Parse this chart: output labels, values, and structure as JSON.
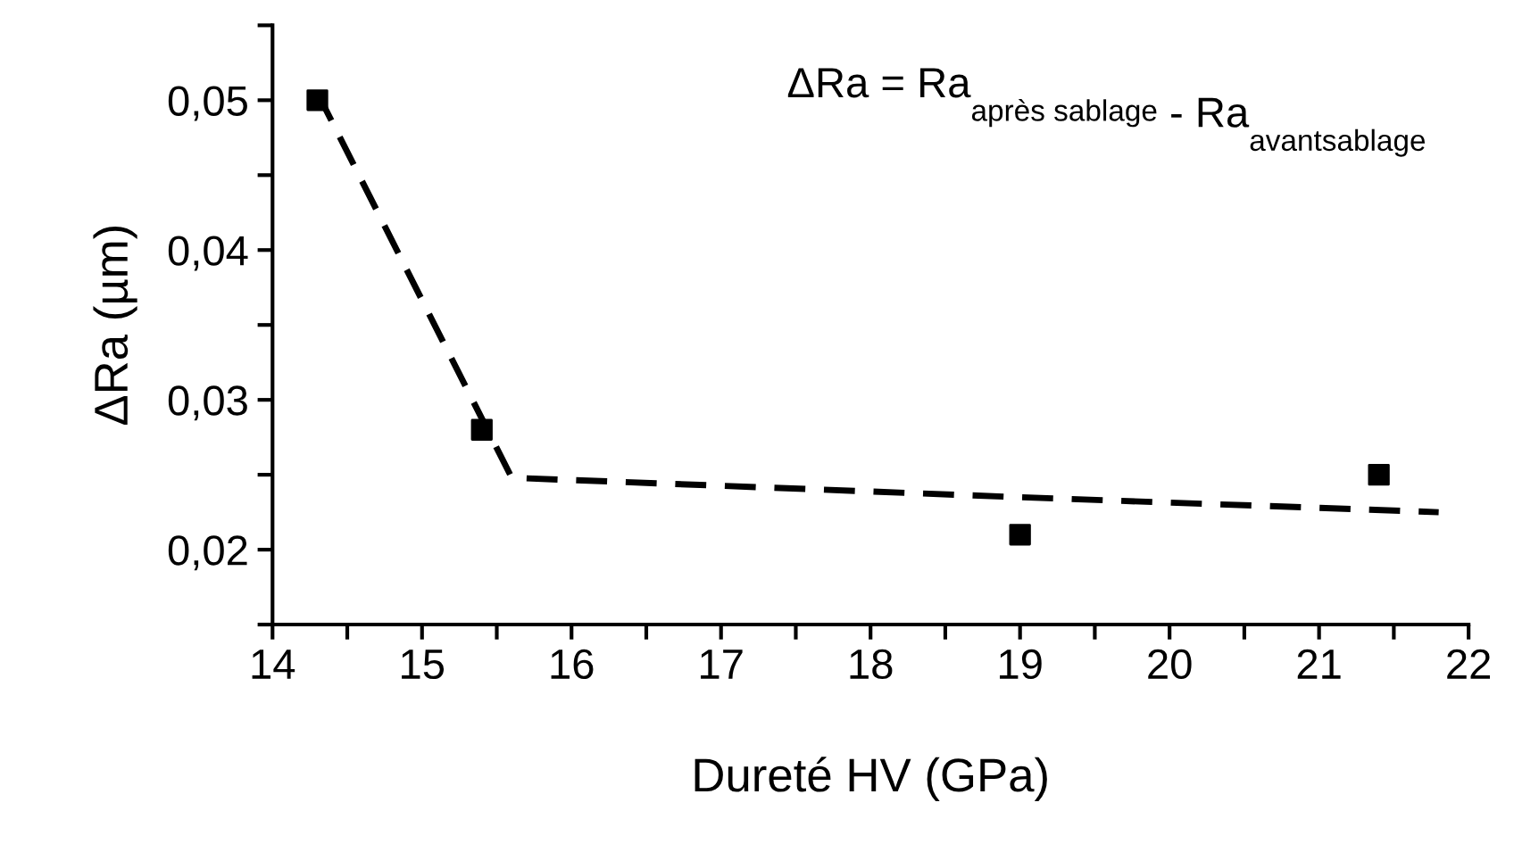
{
  "chart_data": {
    "type": "scatter",
    "xlabel": "Dureté HV (GPa)",
    "ylabel": "ΔRa (µm)",
    "annotations": [
      "ΔRa = Ra$_{après sablage}$ - Ra$_{avantsablage}$"
    ],
    "marker": "square",
    "grid": false,
    "xlim": [
      14,
      22
    ],
    "ylim": [
      0.015,
      0.055
    ],
    "xticks": [
      14,
      {
        "value": 14.5,
        "label": null
      },
      15,
      {
        "value": 15.5,
        "label": null
      },
      16,
      {
        "value": 16.5,
        "label": null
      },
      17,
      {
        "value": 17.5,
        "label": null
      },
      18,
      {
        "value": 18.5,
        "label": null
      },
      19,
      {
        "value": 19.5,
        "label": null
      },
      20,
      {
        "value": 20.5,
        "label": null
      },
      21,
      {
        "value": 21.5,
        "label": null
      },
      22
    ],
    "yticks": [
      {
        "value": 0.015,
        "label": null
      },
      {
        "value": 0.02,
        "label": "0,02"
      },
      {
        "value": 0.025,
        "label": null
      },
      {
        "value": 0.03,
        "label": "0,03"
      },
      {
        "value": 0.035,
        "label": null
      },
      {
        "value": 0.04,
        "label": "0,04"
      },
      {
        "value": 0.045,
        "label": null
      },
      {
        "value": 0.05,
        "label": "0,05"
      },
      {
        "value": 0.055,
        "label": null
      }
    ],
    "series": [
      {
        "color": "#000000",
        "x": [
          14.3,
          15.4,
          19.0,
          21.4
        ],
        "values": [
          0.05,
          0.028,
          0.021,
          0.025
        ]
      },
      {
        "type": "line",
        "color": "#000000",
        "line_style": "dashed",
        "marker": "none",
        "x": [
          14.3,
          15.6,
          19.0,
          21.8
        ],
        "values": [
          0.0505,
          0.0248,
          0.0235,
          0.0225
        ]
      }
    ]
  }
}
